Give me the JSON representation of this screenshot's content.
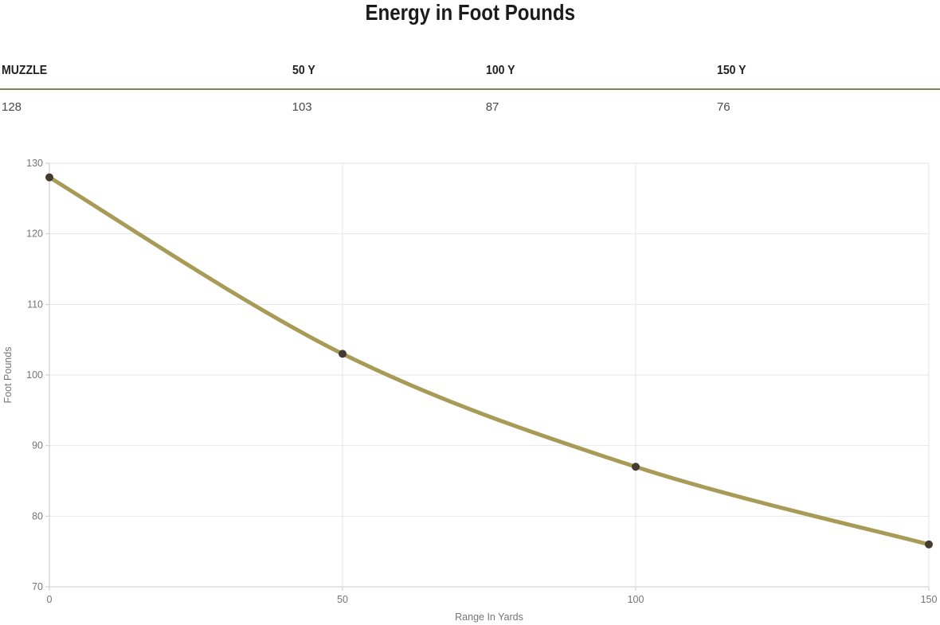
{
  "page": {
    "title": "Energy in Foot Pounds"
  },
  "table": {
    "headers": [
      "MUZZLE",
      "50 Y",
      "100 Y",
      "150 Y"
    ],
    "values": [
      "128",
      "103",
      "87",
      "76"
    ]
  },
  "chart_data": {
    "type": "line",
    "title": "Energy in Foot Pounds",
    "x": [
      0,
      50,
      100,
      150
    ],
    "values": [
      128,
      103,
      87,
      76
    ],
    "xlabel": "Range In Yards",
    "ylabel": "Foot Pounds",
    "xlim": [
      0,
      150
    ],
    "ylim": [
      70,
      130
    ],
    "x_ticks": [
      0,
      50,
      100,
      150
    ],
    "y_ticks": [
      70,
      80,
      90,
      100,
      110,
      120,
      130
    ],
    "grid": true,
    "legend": "none",
    "line_color": "#a79b57",
    "marker_color": "#433a31",
    "gridline_color": "#e6e6e6",
    "axis_line_color": "#c9c9c9",
    "tick_text_color": "#757575"
  },
  "colors": {
    "accent_border": "#89805f",
    "title_text": "#1b1b1b",
    "header_text": "#222222",
    "value_text": "#4a4a4a"
  }
}
